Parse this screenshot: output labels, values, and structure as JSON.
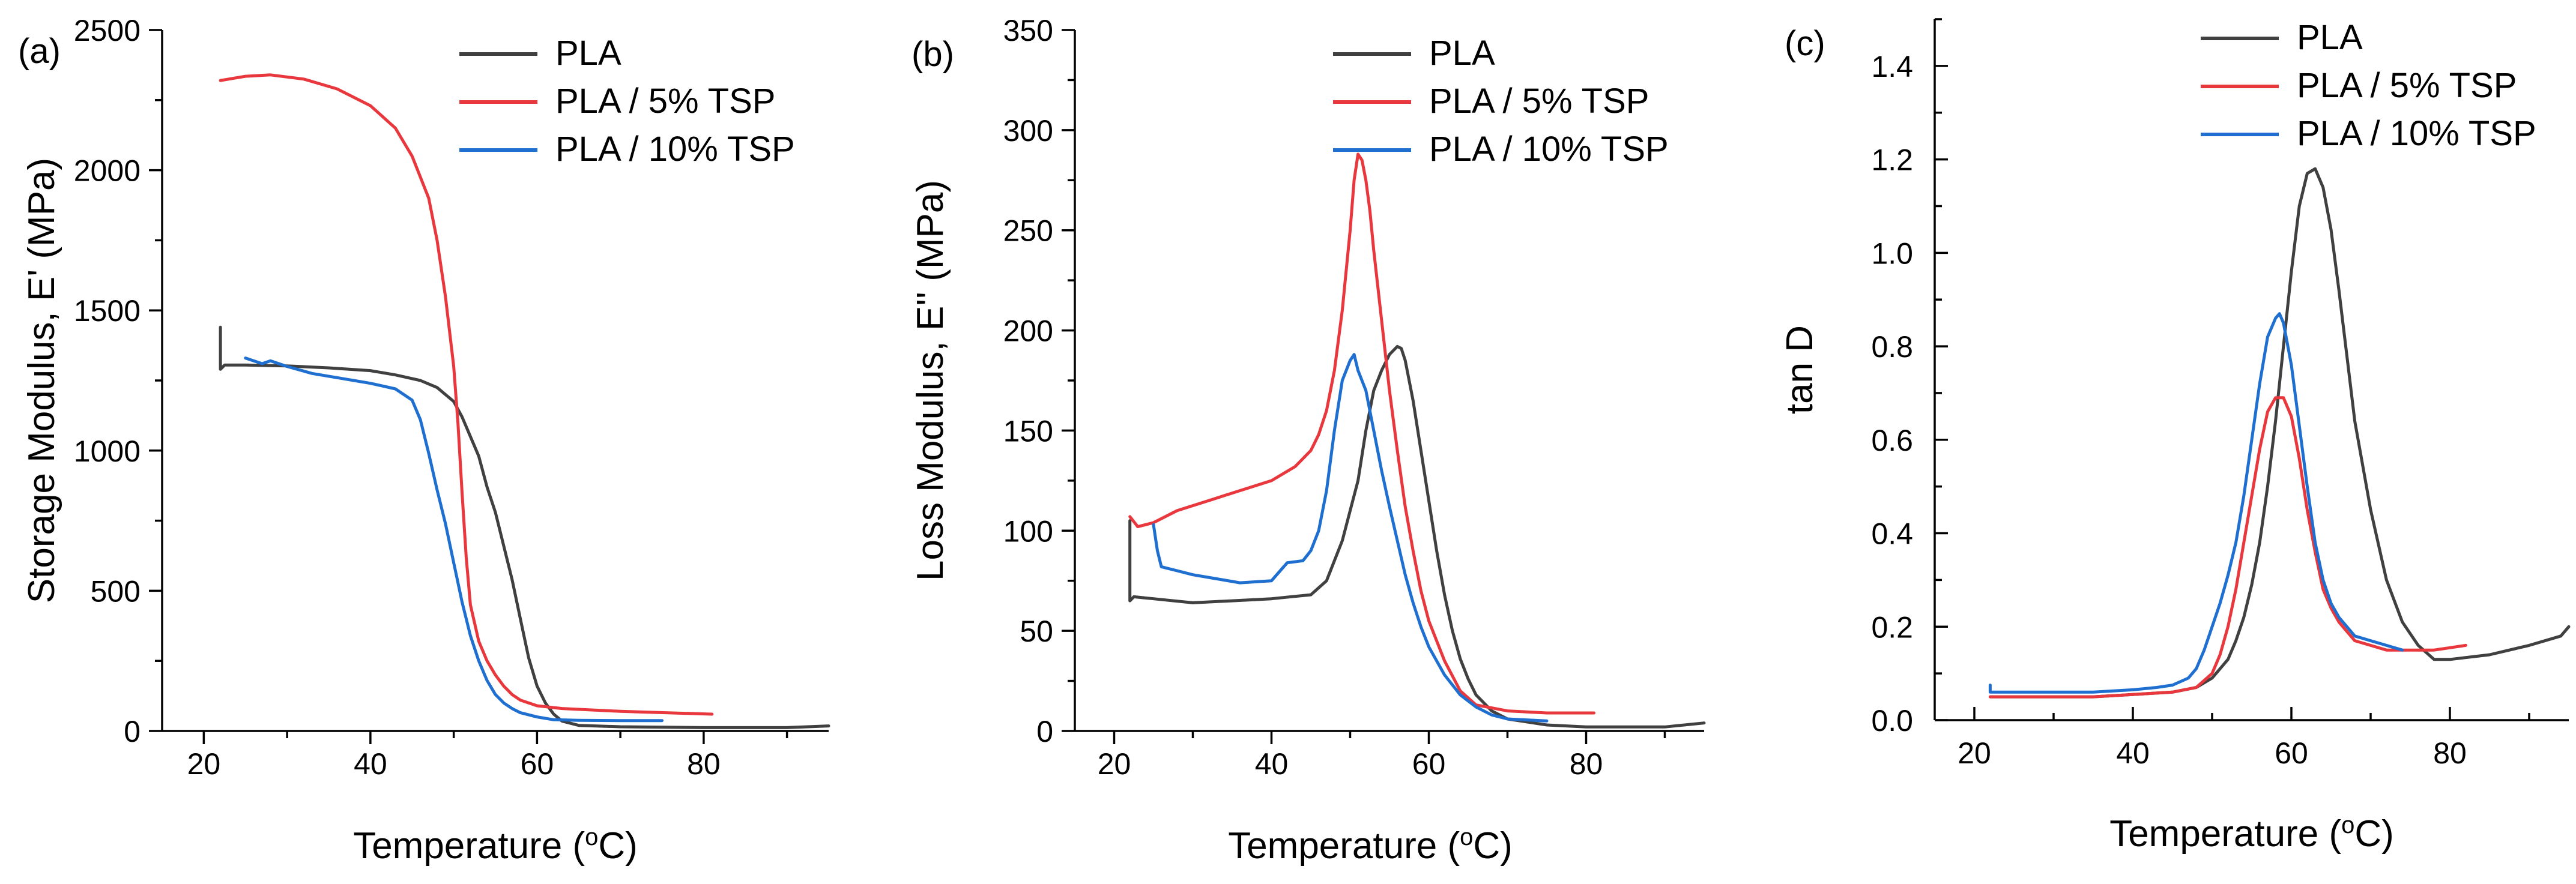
{
  "chart_data": [
    {
      "type": "line",
      "panel_label": "(a)",
      "xlabel": "Temperature (°C)",
      "ylabel": "Storage Modulus, E' (MPa)",
      "xlim": [
        15,
        95
      ],
      "ylim": [
        0,
        2500
      ],
      "xticks": [
        20,
        40,
        60,
        80
      ],
      "yticks": [
        0,
        500,
        1000,
        1500,
        2000,
        2500
      ],
      "legend_position": "top-right",
      "series": [
        {
          "name": "PLA",
          "color": "#404040",
          "x": [
            22,
            22,
            22.5,
            25,
            30,
            35,
            40,
            43,
            46,
            48,
            50,
            51,
            52,
            53,
            54,
            55,
            56,
            57,
            58,
            59,
            60,
            61,
            62,
            63,
            65,
            70,
            80,
            90,
            95
          ],
          "y": [
            1440,
            1290,
            1305,
            1305,
            1302,
            1295,
            1285,
            1270,
            1250,
            1225,
            1175,
            1120,
            1050,
            980,
            870,
            780,
            660,
            540,
            400,
            260,
            160,
            100,
            60,
            35,
            20,
            15,
            12,
            12,
            18
          ]
        },
        {
          "name": "PLA / 5% TSP",
          "color": "#e8383d",
          "x": [
            22,
            25,
            28,
            32,
            36,
            40,
            43,
            45,
            47,
            48,
            49,
            50,
            50.5,
            51,
            51.5,
            52,
            53,
            54,
            55,
            56,
            57,
            58,
            60,
            63,
            70,
            81
          ],
          "y": [
            2320,
            2335,
            2340,
            2325,
            2290,
            2230,
            2150,
            2050,
            1900,
            1750,
            1550,
            1300,
            1100,
            850,
            620,
            450,
            320,
            250,
            200,
            160,
            130,
            110,
            90,
            80,
            70,
            60
          ]
        },
        {
          "name": "PLA / 10% TSP",
          "color": "#1f6fd1",
          "x": [
            25,
            27,
            28,
            30,
            33,
            36,
            40,
            43,
            45,
            46,
            47,
            48,
            49,
            50,
            51,
            52,
            53,
            54,
            55,
            56,
            57,
            58,
            60,
            62,
            65,
            70,
            75
          ],
          "y": [
            1330,
            1310,
            1320,
            1300,
            1275,
            1260,
            1240,
            1220,
            1180,
            1110,
            990,
            860,
            740,
            600,
            460,
            340,
            250,
            180,
            130,
            100,
            80,
            65,
            50,
            40,
            38,
            37,
            37
          ]
        }
      ]
    },
    {
      "type": "line",
      "panel_label": "(b)",
      "xlabel": "Temperature (°C)",
      "ylabel": "Loss Modulus, E'' (MPa)",
      "xlim": [
        15,
        95
      ],
      "ylim": [
        0,
        350
      ],
      "xticks": [
        20,
        40,
        60,
        80
      ],
      "yticks": [
        0,
        50,
        100,
        150,
        200,
        250,
        300,
        350
      ],
      "legend_position": "top-right",
      "series": [
        {
          "name": "PLA",
          "color": "#404040",
          "x": [
            22,
            22,
            22.5,
            25,
            30,
            35,
            40,
            45,
            47,
            48,
            49,
            50,
            51,
            52,
            53,
            54,
            55,
            56,
            56.5,
            57,
            58,
            59,
            60,
            61,
            62,
            63,
            64,
            65,
            66,
            68,
            70,
            75,
            80,
            90,
            95
          ],
          "y": [
            105,
            65,
            67,
            66,
            64,
            65,
            66,
            68,
            75,
            85,
            95,
            110,
            125,
            150,
            170,
            180,
            188,
            192,
            191,
            185,
            165,
            140,
            115,
            90,
            68,
            50,
            36,
            26,
            18,
            10,
            6,
            3,
            2,
            2,
            4
          ]
        },
        {
          "name": "PLA / 5% TSP",
          "color": "#e8383d",
          "x": [
            22,
            23,
            25,
            28,
            32,
            36,
            40,
            43,
            45,
            46,
            47,
            48,
            49,
            50,
            50.5,
            51,
            51.5,
            52,
            52.5,
            53,
            54,
            55,
            56,
            57,
            58,
            59,
            60,
            62,
            64,
            66,
            70,
            75,
            81
          ],
          "y": [
            107,
            102,
            104,
            110,
            115,
            120,
            125,
            132,
            140,
            148,
            160,
            180,
            210,
            250,
            275,
            288,
            285,
            275,
            260,
            240,
            205,
            170,
            140,
            112,
            90,
            70,
            55,
            35,
            20,
            13,
            10,
            9,
            9
          ]
        },
        {
          "name": "PLA / 10% TSP",
          "color": "#1f6fd1",
          "x": [
            25,
            25.5,
            26,
            28,
            30,
            33,
            36,
            40,
            42,
            44,
            45,
            46,
            47,
            48,
            49,
            50,
            50.5,
            51,
            52,
            53,
            54,
            55,
            56,
            57,
            58,
            59,
            60,
            62,
            64,
            66,
            68,
            70,
            75
          ],
          "y": [
            103,
            90,
            82,
            80,
            78,
            76,
            74,
            75,
            84,
            85,
            90,
            100,
            120,
            150,
            175,
            185,
            188,
            180,
            170,
            150,
            130,
            112,
            95,
            78,
            64,
            52,
            42,
            28,
            18,
            12,
            8,
            6,
            5
          ]
        }
      ]
    },
    {
      "type": "line",
      "panel_label": "(c)",
      "xlabel": "Temperature (°C)",
      "ylabel": "tan D",
      "xlim": [
        15,
        95
      ],
      "ylim": [
        0,
        1.5
      ],
      "xticks": [
        20,
        40,
        60,
        80
      ],
      "yticks": [
        0.0,
        0.2,
        0.4,
        0.6,
        0.8,
        1.0,
        1.2,
        1.4
      ],
      "legend_position": "top-right",
      "series": [
        {
          "name": "PLA",
          "color": "#404040",
          "x": [
            22,
            25,
            30,
            35,
            40,
            45,
            48,
            50,
            52,
            53,
            54,
            55,
            56,
            57,
            58,
            59,
            60,
            61,
            62,
            63,
            64,
            65,
            66,
            67,
            68,
            70,
            72,
            74,
            76,
            78,
            80,
            85,
            90,
            94,
            95
          ],
          "y": [
            0.05,
            0.05,
            0.05,
            0.05,
            0.055,
            0.06,
            0.07,
            0.09,
            0.13,
            0.17,
            0.22,
            0.29,
            0.38,
            0.5,
            0.64,
            0.8,
            0.96,
            1.1,
            1.17,
            1.18,
            1.14,
            1.05,
            0.92,
            0.78,
            0.64,
            0.45,
            0.3,
            0.21,
            0.16,
            0.13,
            0.13,
            0.14,
            0.16,
            0.18,
            0.2
          ]
        },
        {
          "name": "PLA / 5% TSP",
          "color": "#e8383d",
          "x": [
            22,
            25,
            30,
            35,
            40,
            45,
            48,
            50,
            51,
            52,
            53,
            54,
            55,
            56,
            57,
            58,
            59,
            60,
            61,
            62,
            63,
            64,
            65,
            66,
            67,
            68,
            70,
            72,
            75,
            78,
            80,
            82
          ],
          "y": [
            0.05,
            0.05,
            0.05,
            0.05,
            0.055,
            0.06,
            0.07,
            0.1,
            0.14,
            0.2,
            0.28,
            0.38,
            0.48,
            0.58,
            0.66,
            0.69,
            0.69,
            0.65,
            0.56,
            0.45,
            0.36,
            0.28,
            0.24,
            0.21,
            0.19,
            0.17,
            0.16,
            0.15,
            0.15,
            0.15,
            0.155,
            0.16
          ]
        },
        {
          "name": "PLA / 10% TSP",
          "color": "#1f6fd1",
          "x": [
            22,
            22,
            23,
            25,
            30,
            35,
            40,
            43,
            45,
            47,
            48,
            49,
            50,
            51,
            52,
            53,
            54,
            55,
            56,
            57,
            58,
            58.5,
            59,
            60,
            61,
            62,
            63,
            64,
            65,
            66,
            67,
            68,
            70,
            72,
            74
          ],
          "y": [
            0.075,
            0.06,
            0.06,
            0.06,
            0.06,
            0.06,
            0.065,
            0.07,
            0.075,
            0.09,
            0.11,
            0.15,
            0.2,
            0.25,
            0.31,
            0.38,
            0.48,
            0.6,
            0.72,
            0.82,
            0.86,
            0.87,
            0.85,
            0.76,
            0.63,
            0.5,
            0.38,
            0.3,
            0.25,
            0.22,
            0.2,
            0.18,
            0.17,
            0.16,
            0.15
          ]
        }
      ]
    }
  ]
}
